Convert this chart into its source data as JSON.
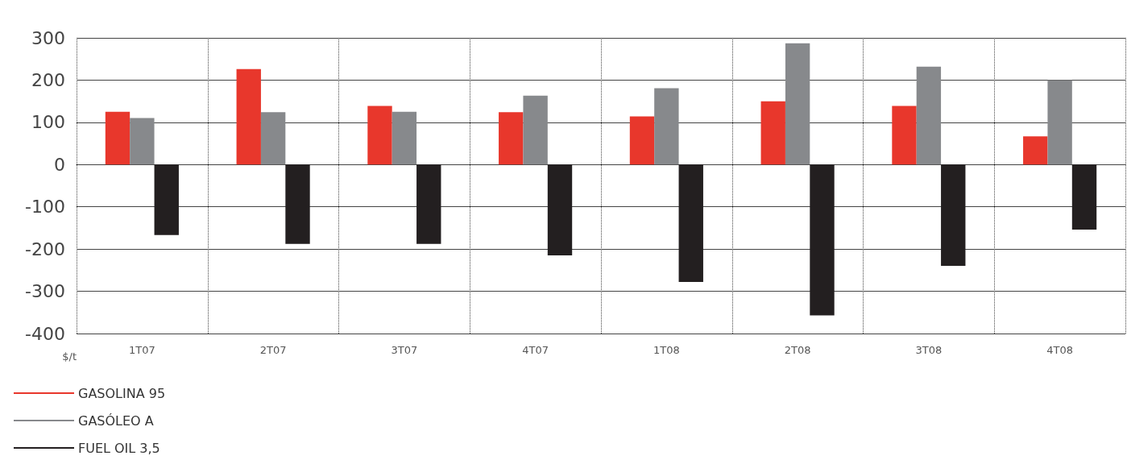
{
  "chart_data": {
    "type": "bar",
    "ylabel": "$/t",
    "categories": [
      "1T07",
      "2T07",
      "3T07",
      "4T07",
      "1T08",
      "2T08",
      "3T08",
      "4T08"
    ],
    "series": [
      {
        "name": "GASOLINA 95",
        "color": "#e8372c",
        "values": [
          125,
          226,
          139,
          124,
          114,
          150,
          139,
          67
        ]
      },
      {
        "name": "GASÓLEO A",
        "color": "#87898c",
        "values": [
          110,
          124,
          125,
          163,
          181,
          287,
          232,
          200
        ]
      },
      {
        "name": "FUEL OIL 3,5",
        "color": "#231f20",
        "values": [
          -167,
          -188,
          -188,
          -215,
          -278,
          -357,
          -240,
          -154
        ]
      }
    ],
    "ylim": [
      -400,
      300
    ],
    "yticks": [
      -400,
      -300,
      -200,
      -100,
      0,
      100,
      200,
      300
    ],
    "grid": true,
    "legend": "bottom left"
  }
}
